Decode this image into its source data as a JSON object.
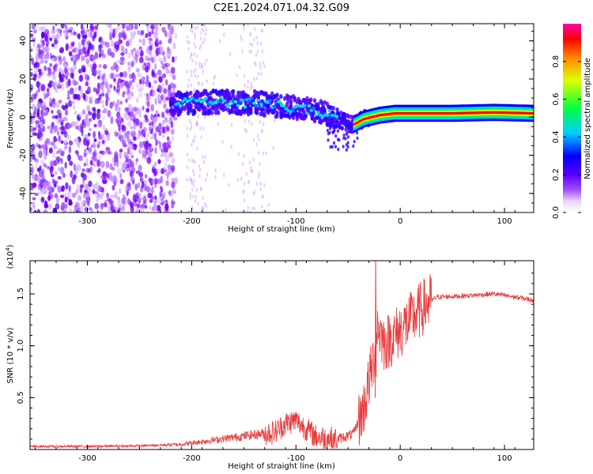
{
  "title": "C2E1.2024.071.04.32.G09",
  "chart_data": [
    {
      "type": "heatmap",
      "xlabel": "Height of straight line (km)",
      "ylabel": "Frequency (Hz)",
      "xlim": [
        -355,
        128
      ],
      "ylim": [
        -50,
        49
      ],
      "x_ticks": [
        -300,
        -200,
        -100,
        0,
        100
      ],
      "y_ticks": [
        -40,
        -20,
        0,
        20,
        40
      ],
      "colorbar": {
        "label": "Normalized spectral amplitude",
        "range": [
          0,
          1
        ],
        "ticks": [
          "0.0",
          "0.2",
          "0.4",
          "0.6",
          "0.8"
        ],
        "colormap": "rainbow",
        "colors": [
          "#ffffff",
          "#7a00ff",
          "#0000ff",
          "#00ffff",
          "#00ff00",
          "#ffff00",
          "#ff0000",
          "#ff00aa"
        ]
      },
      "ridge": {
        "x": [
          -220,
          -180,
          -140,
          -100,
          -70,
          -55,
          -45,
          -35,
          -20,
          -5,
          0,
          50,
          90,
          128
        ],
        "y": [
          7,
          8,
          7.5,
          5,
          2,
          -2,
          -4,
          -1,
          1,
          2,
          2,
          2,
          2.5,
          2
        ]
      }
    },
    {
      "type": "line",
      "xlabel": "Height of straight line (km)",
      "ylabel": "SNR (10 * v/v)",
      "y_multiplier": "(x10",
      "y_multiplier_exp": "4",
      "xlim": [
        -355,
        128
      ],
      "ylim": [
        0,
        1.82
      ],
      "x_ticks": [
        -300,
        -200,
        -100,
        0,
        100
      ],
      "y_ticks": [
        "0.5",
        "1.0",
        "1.5"
      ],
      "line_color": "#e8383a",
      "x": [
        -355,
        -300,
        -250,
        -210,
        -180,
        -150,
        -120,
        -110,
        -100,
        -90,
        -80,
        -60,
        -45,
        -35,
        -30,
        -25,
        -22,
        -15,
        -5,
        5,
        15,
        25,
        35,
        60,
        90,
        110,
        128
      ],
      "y": [
        0.03,
        0.03,
        0.035,
        0.05,
        0.09,
        0.13,
        0.17,
        0.25,
        0.28,
        0.2,
        0.12,
        0.1,
        0.15,
        0.4,
        0.65,
        0.9,
        1.2,
        1.02,
        1.1,
        1.2,
        1.3,
        1.4,
        1.47,
        1.48,
        1.5,
        1.47,
        1.44
      ]
    }
  ]
}
